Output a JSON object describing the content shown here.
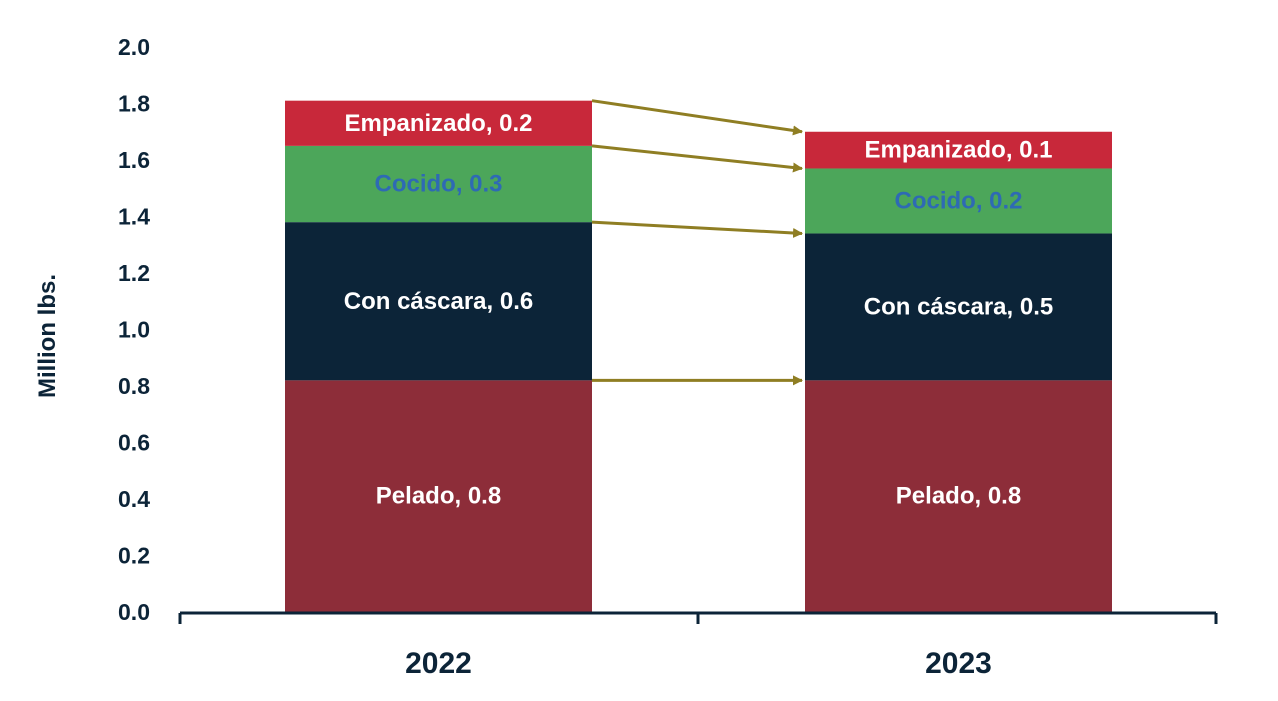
{
  "chart_data": {
    "type": "bar",
    "stacked": true,
    "xlabel": "",
    "ylabel": "Million lbs.",
    "ylim": [
      0,
      2.0
    ],
    "yticks": [
      "0.0",
      "0.2",
      "0.4",
      "0.6",
      "0.8",
      "1.0",
      "1.2",
      "1.4",
      "1.6",
      "1.8",
      "2.0"
    ],
    "grid": false,
    "categories": [
      "2022",
      "2023"
    ],
    "series": [
      {
        "name": "Pelado",
        "color": "#8d2d39",
        "label_color": "#ffffff",
        "values": [
          0.82,
          0.82
        ],
        "labels": [
          "Pelado, 0.8",
          "Pelado, 0.8"
        ]
      },
      {
        "name": "Con cáscara",
        "color": "#0c2438",
        "label_color": "#ffffff",
        "values": [
          0.56,
          0.52
        ],
        "labels": [
          "Con cáscara, 0.6",
          "Con cáscara, 0.5"
        ]
      },
      {
        "name": "Cocido",
        "color": "#4ca65a",
        "label_color": "#2e6ab4",
        "values": [
          0.27,
          0.23
        ],
        "labels": [
          "Cocido, 0.3",
          "Cocido, 0.2"
        ]
      },
      {
        "name": "Empanizado",
        "color": "#c8283a",
        "label_color": "#ffffff",
        "values": [
          0.16,
          0.13
        ],
        "labels": [
          "Empanizado, 0.2",
          "Empanizado, 0.1"
        ]
      }
    ],
    "connector_color": "#8f7e23",
    "axis_color": "#0c2438"
  }
}
